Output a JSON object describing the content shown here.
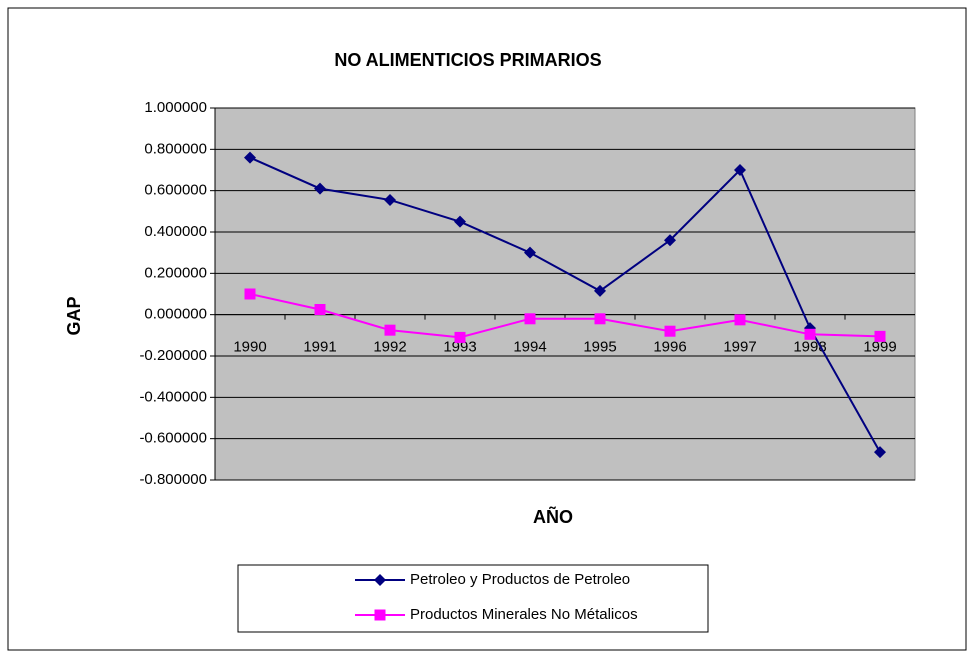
{
  "chart_data": {
    "type": "line",
    "title": "NO ALIMENTICIOS PRIMARIOS",
    "ylabel": "GAP",
    "xlabel": "AÑO",
    "categories": [
      "1990",
      "1991",
      "1992",
      "1993",
      "1994",
      "1995",
      "1996",
      "1997",
      "1998",
      "1999"
    ],
    "series": [
      {
        "name": "Petroleo y Productos de Petroleo",
        "color": "#000080",
        "marker": "diamond",
        "values": [
          0.76,
          0.61,
          0.555,
          0.45,
          0.3,
          0.115,
          0.36,
          0.7,
          -0.065,
          -0.665
        ]
      },
      {
        "name": "Productos Minerales No Métalicos",
        "color": "#FF00FF",
        "marker": "square",
        "values": [
          0.1,
          0.025,
          -0.075,
          -0.11,
          -0.02,
          -0.02,
          -0.08,
          -0.025,
          -0.095,
          -0.105
        ]
      }
    ],
    "ylim": [
      -0.8,
      1.0
    ],
    "yticks": [
      {
        "value": 1.0,
        "label": "1.000000"
      },
      {
        "value": 0.8,
        "label": "0.800000"
      },
      {
        "value": 0.6,
        "label": "0.600000"
      },
      {
        "value": 0.4,
        "label": "0.400000"
      },
      {
        "value": 0.2,
        "label": "0.200000"
      },
      {
        "value": 0.0,
        "label": "0.000000"
      },
      {
        "value": -0.2,
        "label": "-0.200000"
      },
      {
        "value": -0.4,
        "label": "-0.400000"
      },
      {
        "value": -0.6,
        "label": "-0.600000"
      },
      {
        "value": -0.8,
        "label": "-0.800000"
      }
    ],
    "grid": true,
    "plot_background": "#C0C0C0",
    "legend": "bottom"
  }
}
